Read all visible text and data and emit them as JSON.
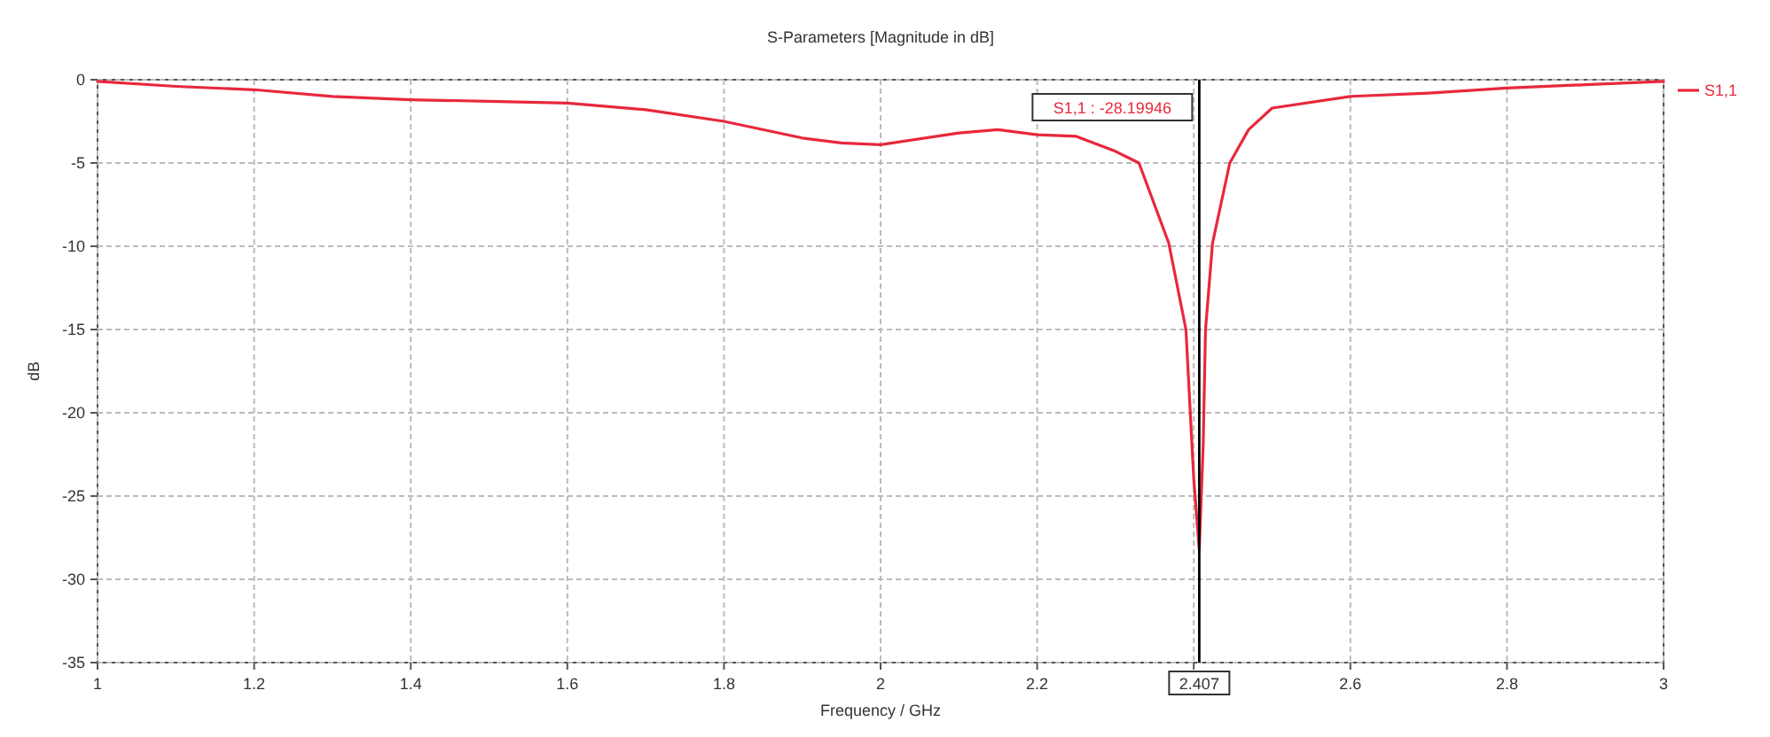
{
  "chart_data": {
    "type": "line",
    "title": "S-Parameters [Magnitude in dB]",
    "xlabel": "Frequency / GHz",
    "ylabel": "dB",
    "xlim": [
      1,
      3
    ],
    "xticks": [
      1,
      1.2,
      1.4,
      1.6,
      1.8,
      2,
      2.2,
      {
        "value": 2.4,
        "label": null
      },
      2.6,
      2.8,
      3
    ],
    "ylim": [
      -35,
      0
    ],
    "yticks": [
      0,
      -5,
      -10,
      -15,
      -20,
      -25,
      -30,
      -35
    ],
    "grid": true,
    "legend": "right",
    "series": [
      {
        "name": "S1,1",
        "color": "#e8283c",
        "x": [
          1,
          1.1,
          1.2,
          1.3,
          1.4,
          1.5,
          1.6,
          1.7,
          1.8,
          1.9,
          1.95,
          2,
          2.1,
          2.15,
          2.2,
          2.25,
          2.3,
          2.33,
          2.368,
          2.39,
          2.4,
          2.407,
          2.412,
          2.415,
          2.424,
          2.446,
          2.47,
          2.5,
          2.6,
          2.7,
          2.8,
          2.9,
          3
        ],
        "values": [
          -0.1,
          -0.4,
          -0.6,
          -1.0,
          -1.2,
          -1.3,
          -1.4,
          -1.8,
          -2.5,
          -3.5,
          -3.8,
          -3.9,
          -3.2,
          -3.0,
          -3.3,
          -3.4,
          -4.3,
          -5.0,
          -9.8,
          -15,
          -24,
          -28.2,
          -22,
          -15,
          -9.8,
          -5,
          -3,
          -1.7,
          -1.0,
          -0.8,
          -0.5,
          -0.3,
          -0.1
        ]
      }
    ],
    "ref_lines": [
      {
        "axis": "x",
        "value": 2.407,
        "label": "2.407",
        "color": "#000000"
      }
    ],
    "annotations": [
      "S1,1 : -28.19946"
    ]
  }
}
